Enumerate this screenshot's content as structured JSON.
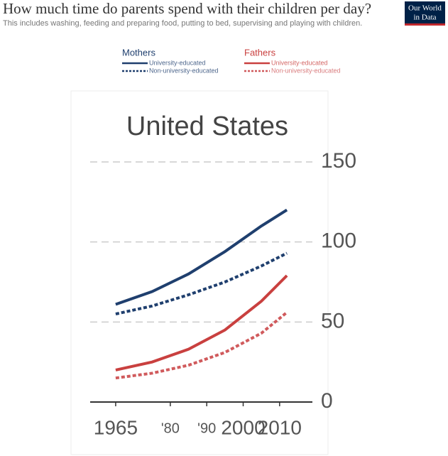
{
  "chart_data": {
    "type": "line",
    "title": "How much time do parents spend with their children per day?",
    "subtitle": "This includes washing, feeding and preparing food, putting to bed, supervising and playing with children.",
    "logo": [
      "Our World",
      "in Data"
    ],
    "panel_title": "United States",
    "x": [
      1965,
      1975,
      1985,
      1995,
      2005,
      2012
    ],
    "xlim": [
      1958,
      2019
    ],
    "xticks": [
      1965,
      {
        "value": 1980,
        "label": "'80"
      },
      {
        "value": 1990,
        "label": "'90"
      },
      2000,
      2010
    ],
    "ylim": [
      0,
      150
    ],
    "yticks": [
      0,
      50,
      100,
      150
    ],
    "grid": true,
    "series": [
      {
        "group": "Mothers",
        "name": "University-educated",
        "color": "#1f3f6e",
        "dashed": false,
        "values": [
          61,
          69,
          80,
          94,
          110,
          120
        ]
      },
      {
        "group": "Mothers",
        "name": "Non-university-educated",
        "color": "#1f3f6e",
        "dashed": true,
        "values": [
          55,
          60,
          67,
          75,
          85,
          93
        ]
      },
      {
        "group": "Fathers",
        "name": "University-educated",
        "color": "#c9403f",
        "dashed": false,
        "values": [
          20,
          25,
          33,
          45,
          63,
          79
        ]
      },
      {
        "group": "Fathers",
        "name": "Non-university-educated",
        "color": "#d05a5c",
        "dashed": true,
        "values": [
          15,
          18,
          23,
          31,
          43,
          56
        ]
      }
    ]
  }
}
